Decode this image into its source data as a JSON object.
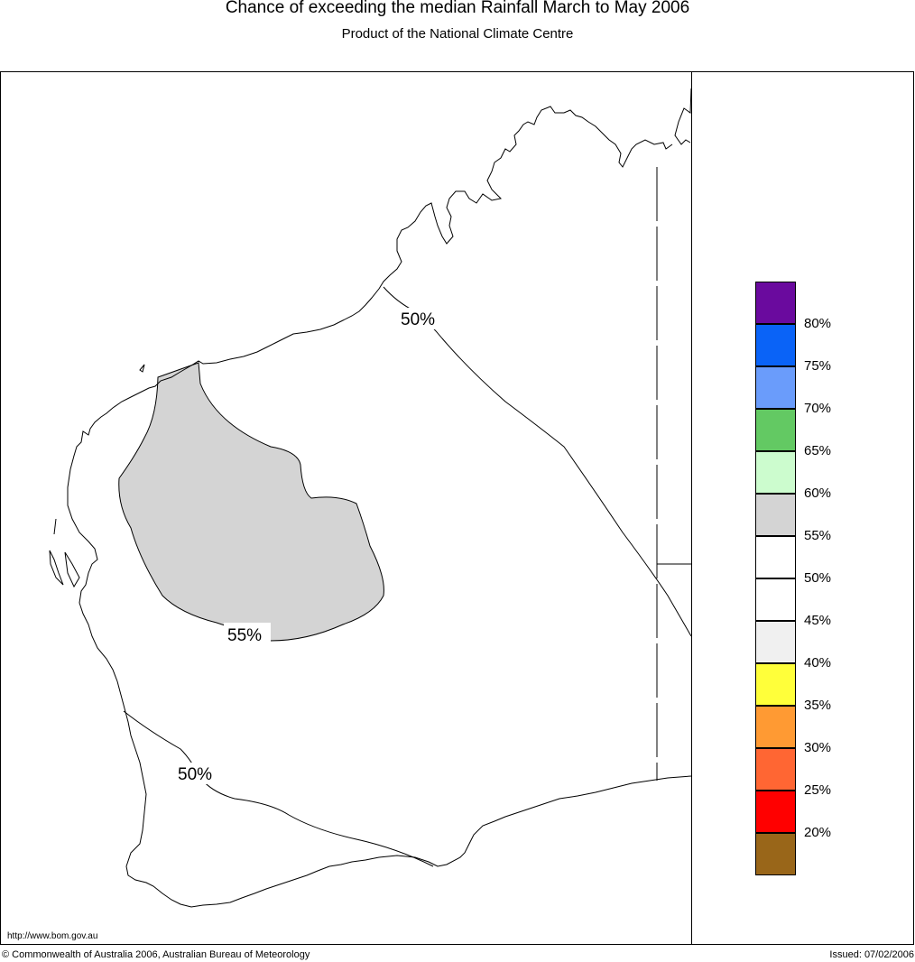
{
  "header": {
    "title": "Chance of exceeding the median Rainfall March to May 2006",
    "subtitle": "Product of the National Climate Centre"
  },
  "map": {
    "contour_labels": [
      "50%",
      "55%",
      "50%"
    ],
    "shaded_region_color": "#d4d4d4"
  },
  "legend": {
    "items": [
      {
        "color": "#6a0a9e",
        "label": ""
      },
      {
        "color": "#0a63f7",
        "label": "80%"
      },
      {
        "color": "#6a9cfb",
        "label": "75%"
      },
      {
        "color": "#63c963",
        "label": "70%"
      },
      {
        "color": "#ccfcce",
        "label": "65%"
      },
      {
        "color": "#d4d4d4",
        "label": "60%"
      },
      {
        "color": "#ffffff",
        "label": "55%"
      },
      {
        "color": "#ffffff",
        "label": "50%"
      },
      {
        "color": "#f0f0f0",
        "label": "45%"
      },
      {
        "color": "#ffff3a",
        "label": "40%"
      },
      {
        "color": "#ff9a33",
        "label": "35%"
      },
      {
        "color": "#ff6633",
        "label": "30%"
      },
      {
        "color": "#ff0000",
        "label": "25%"
      },
      {
        "color": "#996619",
        "label": "20%"
      }
    ]
  },
  "footer": {
    "url": "http://www.bom.gov.au",
    "copyright": "© Commonwealth of Australia 2006, Australian Bureau of Meteorology",
    "issued": "Issued: 07/02/2006"
  }
}
